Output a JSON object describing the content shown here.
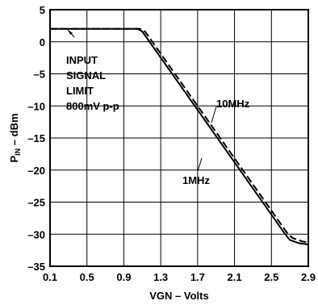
{
  "chart_data": {
    "type": "line",
    "title": "",
    "xlabel": "VGN – Volts",
    "ylabel_main": "P",
    "ylabel_sub": "IN",
    "ylabel_rest": " – dBm",
    "xlim": [
      0.1,
      2.9
    ],
    "ylim": [
      -35,
      5
    ],
    "xticks": [
      0.1,
      0.5,
      0.9,
      1.3,
      1.7,
      2.1,
      2.5,
      2.9
    ],
    "xtick_labels": [
      "0.1",
      "0.5",
      "0.9",
      "1.3",
      "1.7",
      "2.1",
      "2.5",
      "2.9"
    ],
    "yticks": [
      5,
      0,
      -5,
      -10,
      -15,
      -20,
      -25,
      -30,
      -35
    ],
    "ytick_labels": [
      "5",
      "0",
      "–5",
      "–10",
      "–15",
      "–20",
      "–25",
      "–30",
      "–35"
    ],
    "grid": true,
    "series": [
      {
        "name": "1MHz",
        "style": "solid",
        "x": [
          0.1,
          1.05,
          1.1,
          2.65,
          2.7,
          2.8,
          2.9
        ],
        "y": [
          2,
          2,
          1.6,
          -30,
          -30.9,
          -31.4,
          -31.6
        ]
      },
      {
        "name": "10MHz",
        "style": "dashed",
        "x": [
          0.1,
          1.08,
          1.13,
          2.68,
          2.73,
          2.83,
          2.9
        ],
        "y": [
          2,
          2,
          1.6,
          -30,
          -30.6,
          -31.1,
          -31.3
        ]
      }
    ],
    "annotations": {
      "input_limit_lines": [
        "INPUT",
        "SIGNAL",
        "LIMIT",
        "800mV p-p"
      ],
      "label_10mhz": "10MHz",
      "label_1mhz": "1MHz"
    }
  }
}
